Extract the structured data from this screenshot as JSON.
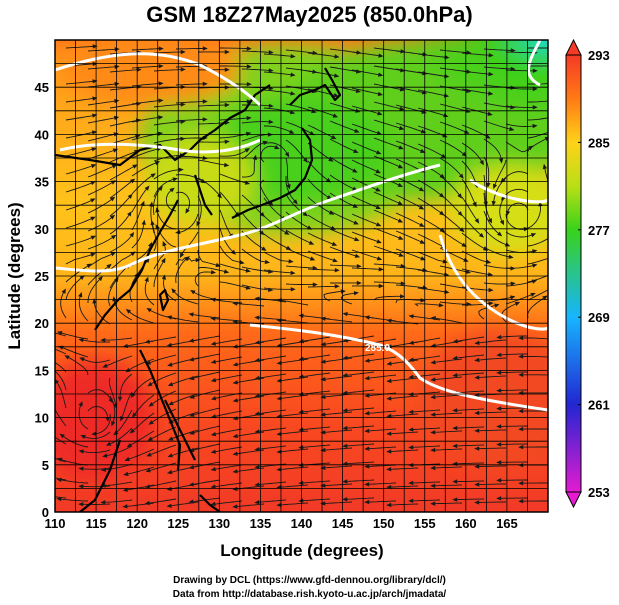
{
  "title": "GSM 18Z27May2025 (850.0hPa)",
  "axes": {
    "xlabel": "Longitude (degrees)",
    "ylabel": "Latitude  (degrees)",
    "xrange": [
      110,
      170
    ],
    "yrange": [
      0,
      50
    ],
    "xticks": [
      "110",
      "115",
      "120",
      "125",
      "130",
      "135",
      "140",
      "145",
      "150",
      "155",
      "160",
      "165"
    ],
    "yticks": [
      "0",
      "5",
      "10",
      "15",
      "20",
      "25",
      "30",
      "35",
      "40",
      "45"
    ]
  },
  "colorbar": {
    "labels": [
      "293",
      "285",
      "277",
      "269",
      "261",
      "253"
    ],
    "stops": [
      {
        "value": 253,
        "color": "#e51bd0"
      },
      {
        "value": 261,
        "color": "#2226d2"
      },
      {
        "value": 269,
        "color": "#17b5ff"
      },
      {
        "value": 277,
        "color": "#39d21a"
      },
      {
        "value": 281,
        "color": "#b9df16"
      },
      {
        "value": 285,
        "color": "#ffd21a"
      },
      {
        "value": 289,
        "color": "#ff7a14"
      },
      {
        "value": 293,
        "color": "#f53a26"
      }
    ]
  },
  "map": {
    "field": "850hPa temperature (K) with wind streamlines",
    "contour_label": "285.0"
  },
  "credits": {
    "line1": "Drawing by DCL (https://www.gfd-dennou.org/library/dcl/)",
    "line2": "Data from http://database.rish.kyoto-u.ac.jp/arch/jmadata/"
  }
}
